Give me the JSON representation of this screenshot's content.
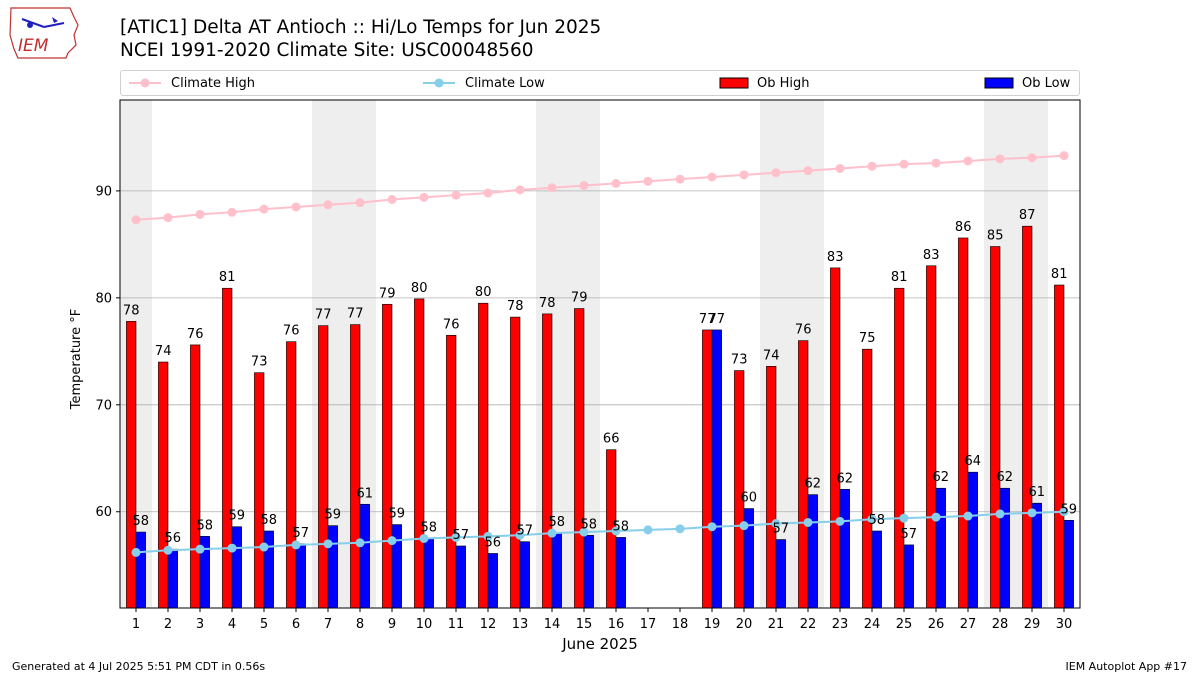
{
  "logo": {
    "text": "IEM"
  },
  "header": {
    "title": "[ATIC1] Delta  AT Antioch :: Hi/Lo Temps for Jun 2025",
    "subtitle": "NCEI 1991-2020 Climate Site: USC00048560"
  },
  "legend": {
    "climate_high": "Climate High",
    "climate_low": "Climate Low",
    "ob_high": "Ob High",
    "ob_low": "Ob Low"
  },
  "colors": {
    "ob_high": "#ff0000",
    "ob_low": "#0000ff",
    "climate_high": "#ffc0cb",
    "climate_low": "#87ceeb",
    "weekend_band": "#eeeeee",
    "grid": "#b0b0b0"
  },
  "footer": {
    "left": "Generated at 4 Jul 2025 5:51 PM CDT in 0.56s",
    "right": "IEM Autoplot App #17"
  },
  "chart_data": {
    "type": "bar",
    "xlabel": "June 2025",
    "ylabel": "Temperature °F",
    "ylim": [
      51,
      98.5
    ],
    "yticks": [
      60,
      70,
      80,
      90
    ],
    "grid": true,
    "legend_position": "top",
    "categories": [
      1,
      2,
      3,
      4,
      5,
      6,
      7,
      8,
      9,
      10,
      11,
      12,
      13,
      14,
      15,
      16,
      17,
      18,
      19,
      20,
      21,
      22,
      23,
      24,
      25,
      26,
      27,
      28,
      29,
      30
    ],
    "weekend_bands": [
      [
        1,
        1
      ],
      [
        7,
        8
      ],
      [
        14,
        15
      ],
      [
        21,
        22
      ],
      [
        28,
        29
      ]
    ],
    "series": [
      {
        "name": "Ob High",
        "kind": "bar",
        "values": [
          78,
          74,
          76,
          81,
          73,
          76,
          77,
          77,
          79,
          80,
          76,
          80,
          78,
          78,
          79,
          66,
          null,
          null,
          77,
          73,
          74,
          76,
          83,
          75,
          81,
          83,
          86,
          85,
          87,
          81
        ],
        "display_values": [
          77.8,
          74.0,
          75.6,
          80.9,
          73.0,
          75.9,
          77.4,
          77.5,
          79.4,
          79.9,
          76.5,
          79.5,
          78.2,
          78.5,
          79.0,
          65.8,
          null,
          null,
          77.0,
          73.2,
          73.6,
          76.0,
          82.8,
          75.2,
          80.9,
          83.0,
          85.6,
          84.8,
          86.7,
          81.2
        ]
      },
      {
        "name": "Ob Low",
        "kind": "bar",
        "values": [
          58,
          56,
          58,
          59,
          58,
          57,
          59,
          61,
          59,
          58,
          57,
          56,
          57,
          58,
          58,
          58,
          null,
          null,
          77,
          60,
          57,
          62,
          62,
          58,
          57,
          62,
          64,
          62,
          61,
          59
        ],
        "display_values": [
          58.1,
          56.5,
          57.7,
          58.6,
          58.2,
          57.0,
          58.7,
          60.7,
          58.8,
          57.5,
          56.8,
          56.1,
          57.2,
          58.0,
          57.8,
          57.6,
          null,
          null,
          77.0,
          60.3,
          57.4,
          61.6,
          62.1,
          58.2,
          56.9,
          62.2,
          63.7,
          62.2,
          60.8,
          59.2
        ]
      },
      {
        "name": "Climate High",
        "kind": "line",
        "values": [
          87.3,
          87.5,
          87.8,
          88.0,
          88.3,
          88.5,
          88.7,
          88.9,
          89.2,
          89.4,
          89.6,
          89.8,
          90.1,
          90.3,
          90.5,
          90.7,
          90.9,
          91.1,
          91.3,
          91.5,
          91.7,
          91.9,
          92.1,
          92.3,
          92.5,
          92.6,
          92.8,
          93.0,
          93.1,
          93.3
        ]
      },
      {
        "name": "Climate Low",
        "kind": "line",
        "values": [
          56.2,
          56.4,
          56.5,
          56.6,
          56.7,
          56.9,
          57.0,
          57.1,
          57.3,
          57.5,
          57.6,
          57.7,
          57.8,
          58.0,
          58.1,
          58.2,
          58.3,
          58.4,
          58.6,
          58.7,
          58.9,
          59.0,
          59.1,
          59.3,
          59.4,
          59.5,
          59.6,
          59.8,
          59.9,
          60.0
        ]
      }
    ]
  }
}
